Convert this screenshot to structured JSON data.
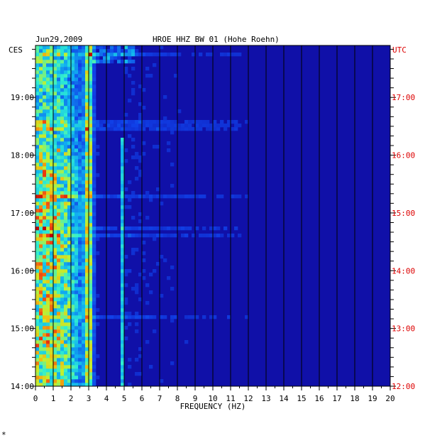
{
  "chart_data": {
    "type": "heatmap",
    "date": "Jun29,2009",
    "title": "HROE HHZ BW 01 (Hohe Roehn)",
    "xlabel": "FREQUENCY (HZ)",
    "left_axis_label": "CES",
    "right_axis_label": "UTC",
    "x_ticks": [
      "0",
      "1",
      "2",
      "3",
      "4",
      "5",
      "6",
      "7",
      "8",
      "9",
      "10",
      "11",
      "12",
      "13",
      "14",
      "15",
      "16",
      "17",
      "18",
      "19",
      "20"
    ],
    "xlim": [
      0,
      20
    ],
    "left_time_range_hours": [
      14.0,
      19.9
    ],
    "left_time_ticks": [
      "19:00",
      "18:00",
      "17:00",
      "16:00",
      "15:00",
      "14:00"
    ],
    "right_time_ticks": [
      "17:00",
      "16:00",
      "15:00",
      "14:00",
      "13:00",
      "12:00"
    ],
    "colors": {
      "background": "#1010a8",
      "grid": "#000000",
      "left_axis_text": "#000000",
      "right_axis_text": "#dd0000"
    },
    "features": [
      {
        "name": "low-frequency energy band",
        "freq_range": [
          0,
          3.5
        ],
        "intensity": "high"
      },
      {
        "name": "3 Hz line",
        "freq": 3.0,
        "intensity": "very high"
      },
      {
        "name": "5 Hz line",
        "freq": 4.9,
        "intensity": "medium"
      }
    ],
    "footnote": "*"
  }
}
